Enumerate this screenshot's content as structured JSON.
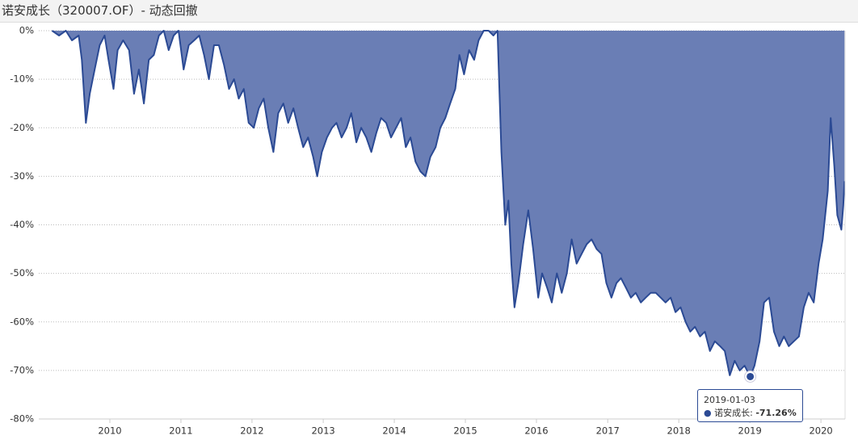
{
  "chart_data": {
    "type": "area",
    "title": "诺安成长（320007.OF）- 动态回撤",
    "xlim": [
      "2009-01-01",
      "2020-05-04"
    ],
    "xticks": [
      {
        "value": "2010-01-01",
        "label": "2010"
      },
      {
        "value": "2011-01-01",
        "label": "2011"
      },
      {
        "value": "2012-01-01",
        "label": "2012"
      },
      {
        "value": "2013-01-01",
        "label": "2013"
      },
      {
        "value": "2014-01-01",
        "label": "2014"
      },
      {
        "value": "2015-01-01",
        "label": "2015"
      },
      {
        "value": "2016-01-01",
        "label": "2016"
      },
      {
        "value": "2017-01-01",
        "label": "2017"
      },
      {
        "value": "2018-01-01",
        "label": "2018"
      },
      {
        "value": "2019-01-01",
        "label": "2019"
      },
      {
        "value": "2020-01-01",
        "label": "2020"
      }
    ],
    "ylim": [
      -80,
      0
    ],
    "yticks": [
      {
        "value": 0,
        "label": "0%"
      },
      {
        "value": -10,
        "label": "-10%"
      },
      {
        "value": -20,
        "label": "-20%"
      },
      {
        "value": -30,
        "label": "-30%"
      },
      {
        "value": -40,
        "label": "-40%"
      },
      {
        "value": -50,
        "label": "-50%"
      },
      {
        "value": -60,
        "label": "-60%"
      },
      {
        "value": -70,
        "label": "-70%"
      },
      {
        "value": -80,
        "label": "-80%"
      }
    ],
    "grid": true,
    "x": [
      "2009-03-10",
      "2009-04-15",
      "2009-05-20",
      "2009-06-20",
      "2009-07-25",
      "2009-08-10",
      "2009-08-31",
      "2009-09-20",
      "2009-10-15",
      "2009-11-10",
      "2009-12-05",
      "2009-12-25",
      "2010-01-20",
      "2010-02-10",
      "2010-03-10",
      "2010-04-10",
      "2010-05-05",
      "2010-05-30",
      "2010-06-25",
      "2010-07-20",
      "2010-08-15",
      "2010-09-10",
      "2010-10-05",
      "2010-10-30",
      "2010-11-25",
      "2010-12-20",
      "2011-01-15",
      "2011-02-10",
      "2011-03-10",
      "2011-04-05",
      "2011-04-30",
      "2011-05-25",
      "2011-06-20",
      "2011-07-15",
      "2011-08-10",
      "2011-09-05",
      "2011-10-01",
      "2011-10-25",
      "2011-11-20",
      "2011-12-15",
      "2012-01-10",
      "2012-02-05",
      "2012-03-01",
      "2012-03-25",
      "2012-04-20",
      "2012-05-15",
      "2012-06-10",
      "2012-07-05",
      "2012-08-01",
      "2012-08-25",
      "2012-09-20",
      "2012-10-15",
      "2012-11-10",
      "2012-12-01",
      "2012-12-25",
      "2013-01-20",
      "2013-02-15",
      "2013-03-10",
      "2013-04-05",
      "2013-05-01",
      "2013-05-25",
      "2013-06-20",
      "2013-07-15",
      "2013-08-10",
      "2013-09-05",
      "2013-10-01",
      "2013-10-25",
      "2013-11-20",
      "2013-12-15",
      "2014-01-10",
      "2014-02-05",
      "2014-03-01",
      "2014-03-25",
      "2014-04-20",
      "2014-05-15",
      "2014-06-10",
      "2014-07-05",
      "2014-08-01",
      "2014-08-25",
      "2014-09-20",
      "2014-10-15",
      "2014-11-10",
      "2014-12-01",
      "2014-12-25",
      "2015-01-20",
      "2015-02-15",
      "2015-03-10",
      "2015-04-05",
      "2015-04-30",
      "2015-05-25",
      "2015-06-15",
      "2015-07-05",
      "2015-07-25",
      "2015-08-10",
      "2015-08-25",
      "2015-09-10",
      "2015-09-30",
      "2015-10-25",
      "2015-11-20",
      "2015-12-15",
      "2016-01-10",
      "2016-01-30",
      "2016-02-25",
      "2016-03-20",
      "2016-04-15",
      "2016-05-10",
      "2016-06-05",
      "2016-06-30",
      "2016-07-25",
      "2016-08-20",
      "2016-09-15",
      "2016-10-10",
      "2016-11-05",
      "2016-11-30",
      "2016-12-25",
      "2017-01-20",
      "2017-02-15",
      "2017-03-10",
      "2017-04-05",
      "2017-04-30",
      "2017-05-25",
      "2017-06-20",
      "2017-07-15",
      "2017-08-10",
      "2017-09-05",
      "2017-09-30",
      "2017-10-25",
      "2017-11-20",
      "2017-12-15",
      "2018-01-10",
      "2018-02-05",
      "2018-03-01",
      "2018-03-25",
      "2018-04-20",
      "2018-05-15",
      "2018-06-10",
      "2018-07-05",
      "2018-08-01",
      "2018-08-25",
      "2018-09-20",
      "2018-10-15",
      "2018-11-10",
      "2018-12-05",
      "2019-01-03",
      "2019-01-25",
      "2019-02-20",
      "2019-03-15",
      "2019-04-10",
      "2019-05-05",
      "2019-06-01",
      "2019-06-25",
      "2019-07-20",
      "2019-08-15",
      "2019-09-10",
      "2019-10-05",
      "2019-10-30",
      "2019-11-25",
      "2019-12-20",
      "2020-01-10",
      "2020-02-05",
      "2020-02-20",
      "2020-03-10",
      "2020-03-25",
      "2020-04-15",
      "2020-04-25",
      "2020-05-01"
    ],
    "series": [
      {
        "name": "诺安成长",
        "color": "#2b4a94",
        "fill": "#6a7eb5",
        "values": [
          0,
          -1,
          0,
          -2,
          -1,
          -6,
          -19,
          -13,
          -8,
          -3,
          -1,
          -6,
          -12,
          -4,
          -2,
          -4,
          -13,
          -8,
          -15,
          -6,
          -5,
          -1,
          0,
          -4,
          -1,
          0,
          -8,
          -3,
          -2,
          -1,
          -5,
          -10,
          -3,
          -3,
          -7,
          -12,
          -10,
          -14,
          -12,
          -19,
          -20,
          -16,
          -14,
          -20,
          -25,
          -17,
          -15,
          -19,
          -16,
          -20,
          -24,
          -22,
          -26,
          -30,
          -25,
          -22,
          -20,
          -19,
          -22,
          -20,
          -17,
          -23,
          -20,
          -22,
          -25,
          -21,
          -18,
          -19,
          -22,
          -20,
          -18,
          -24,
          -22,
          -27,
          -29,
          -30,
          -26,
          -24,
          -20,
          -18,
          -15,
          -12,
          -5,
          -9,
          -4,
          -6,
          -2,
          0,
          0,
          -1,
          0,
          -25,
          -40,
          -35,
          -48,
          -57,
          -52,
          -44,
          -37,
          -45,
          -55,
          -50,
          -53,
          -56,
          -50,
          -54,
          -50,
          -43,
          -48,
          -46,
          -44,
          -43,
          -45,
          -46,
          -52,
          -55,
          -52,
          -51,
          -53,
          -55,
          -54,
          -56,
          -55,
          -54,
          -54,
          -55,
          -56,
          -55,
          -58,
          -57,
          -60,
          -62,
          -61,
          -63,
          -62,
          -66,
          -64,
          -65,
          -66,
          -71,
          -68,
          -70,
          -69,
          -71.26,
          -69,
          -64,
          -56,
          -55,
          -62,
          -65,
          -63,
          -65,
          -64,
          -63,
          -57,
          -54,
          -56,
          -48,
          -43,
          -33,
          -18,
          -28,
          -38,
          -41,
          -36,
          -31
        ]
      }
    ],
    "tooltip": {
      "x": "2019-01-03",
      "label": "诺安成长:",
      "value": -71.26,
      "value_label": "-71.26%"
    }
  }
}
